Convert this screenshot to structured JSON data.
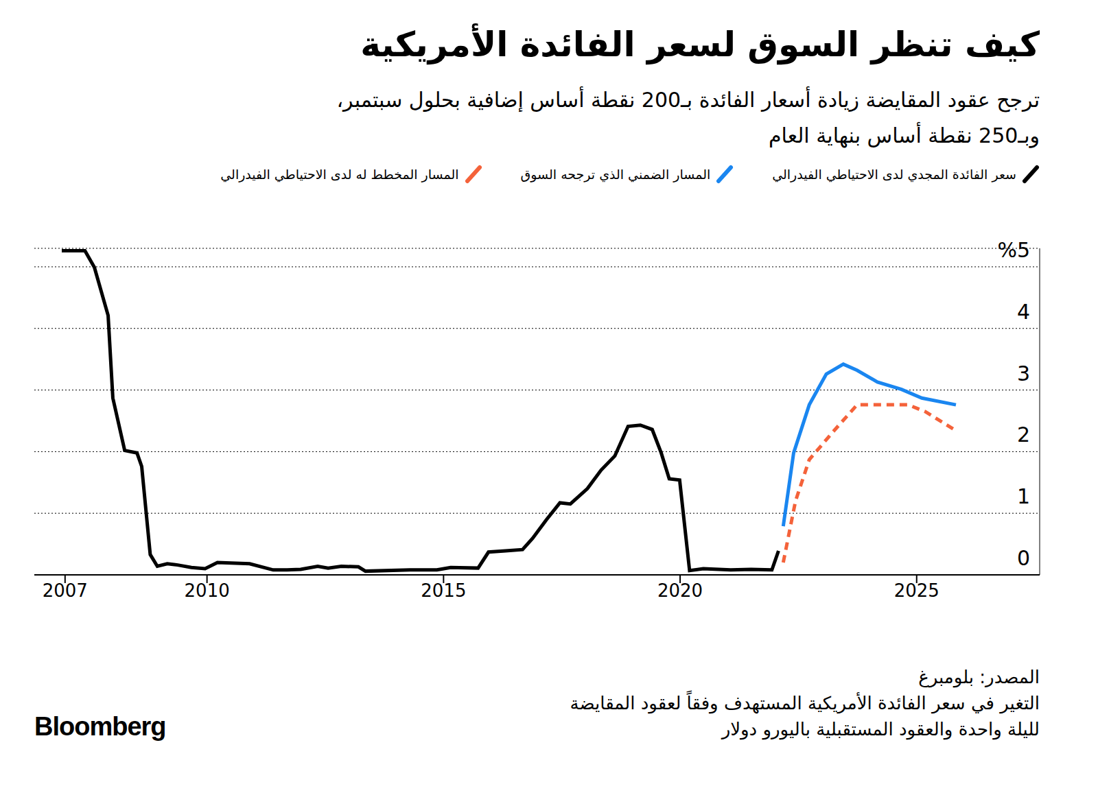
{
  "chart_data": {
    "type": "line",
    "title": "كيف تنظر السوق لسعر الفائدة الأمريكية",
    "subtitle": [
      "ترجح عقود المقايضة زيادة أسعار الفائدة بـ200 نقطة أساس إضافية بحلول سبتمبر،",
      "وبـ250 نقطة أساس بنهاية العام"
    ],
    "source": "المصدر: بلومبرغ",
    "note": [
      "التغير في سعر الفائدة الأمريكية المستهدف وفقاً لعقود المقايضة",
      "لليلة واحدة والعقود المستقبلية باليورو دولار"
    ],
    "brand": "Bloomberg",
    "xlim": [
      2006.35,
      2027.6
    ],
    "xticks": [
      2007,
      2010,
      2015,
      2020,
      2025
    ],
    "ylim": [
      0,
      5.3
    ],
    "yticks": [
      0,
      1,
      2,
      3,
      4,
      {
        "value": 5,
        "label": "%5"
      }
    ],
    "grid": true,
    "series": [
      {
        "name": "سعر الفائدة المجدي لدى الاحتياطي الفيدرالي",
        "color": "#000000",
        "line_style": "solid",
        "x": [
          2006.93,
          2007.42,
          2007.62,
          2007.91,
          2008.01,
          2008.26,
          2008.52,
          2008.62,
          2008.8,
          2008.95,
          2009.16,
          2009.38,
          2009.67,
          2009.96,
          2010.22,
          2010.9,
          2011.4,
          2011.69,
          2011.98,
          2012.34,
          2012.56,
          2012.84,
          2013.2,
          2013.35,
          2014.29,
          2014.86,
          2015.15,
          2015.73,
          2015.95,
          2016.31,
          2016.67,
          2016.88,
          2017.17,
          2017.46,
          2017.68,
          2018.04,
          2018.33,
          2018.62,
          2018.9,
          2019.16,
          2019.41,
          2019.6,
          2019.77,
          2019.99,
          2020.2,
          2020.49,
          2021.07,
          2021.5,
          2021.94,
          2022.08
        ],
        "values": [
          5.26,
          5.26,
          4.99,
          4.21,
          2.87,
          2.02,
          1.98,
          1.76,
          0.33,
          0.14,
          0.18,
          0.16,
          0.12,
          0.1,
          0.2,
          0.18,
          0.08,
          0.08,
          0.09,
          0.14,
          0.11,
          0.14,
          0.13,
          0.06,
          0.08,
          0.08,
          0.12,
          0.11,
          0.37,
          0.39,
          0.41,
          0.59,
          0.89,
          1.17,
          1.15,
          1.4,
          1.7,
          1.93,
          2.41,
          2.43,
          2.36,
          1.98,
          1.56,
          1.54,
          0.07,
          0.1,
          0.08,
          0.09,
          0.08,
          0.39
        ]
      },
      {
        "name": "المسار الضمني الذي ترجحه السوق",
        "color": "#1a86f0",
        "line_style": "solid",
        "x": [
          2022.18,
          2022.4,
          2022.73,
          2023.09,
          2023.45,
          2023.74,
          2024.17,
          2024.68,
          2025.11,
          2025.83
        ],
        "values": [
          0.79,
          1.98,
          2.76,
          3.26,
          3.42,
          3.32,
          3.13,
          3.01,
          2.87,
          2.76
        ]
      },
      {
        "name": "المسار المخطط له لدى الاحتياطي الفيدرالي",
        "color": "#f4623a",
        "line_style": "dashed",
        "x": [
          2022.18,
          2022.44,
          2022.73,
          2023.23,
          2023.74,
          2024.82,
          2025.18,
          2025.83
        ],
        "values": [
          0.2,
          1.2,
          1.87,
          2.32,
          2.76,
          2.76,
          2.65,
          2.34
        ]
      }
    ]
  }
}
